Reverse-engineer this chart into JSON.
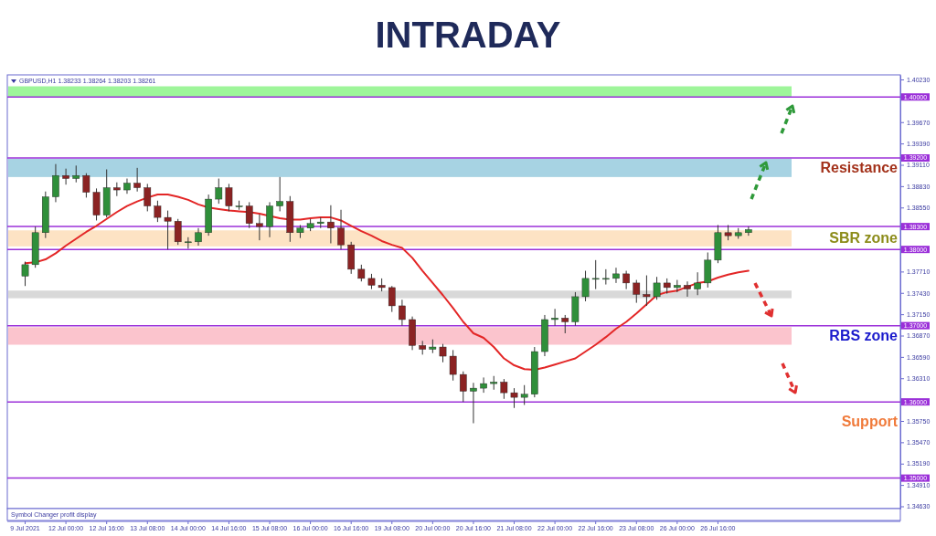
{
  "chart_data": {
    "type": "candlestick",
    "title": "INTRADAY",
    "subtitle": "GBPUSD,H1  1.38233 1.38264 1.38203 1.38261",
    "categories": [
      "9 Jul 2021",
      null,
      null,
      null,
      "12 Jul 00:00",
      null,
      null,
      null,
      "12 Jul 16:00",
      null,
      null,
      null,
      "13 Jul 08:00",
      null,
      null,
      null,
      "14 Jul 00:00",
      null,
      null,
      null,
      "14 Jul 16:00",
      null,
      null,
      null,
      "15 Jul 08:00",
      null,
      null,
      null,
      "16 Jul 00:00",
      null,
      null,
      null,
      "16 Jul 16:00",
      null,
      null,
      null,
      "19 Jul 08:00",
      null,
      null,
      null,
      "20 Jul 00:00",
      null,
      null,
      null,
      "20 Jul 16:00",
      null,
      null,
      null,
      "21 Jul 08:00",
      null,
      null,
      null,
      "22 Jul 00:00",
      null,
      null,
      null,
      "22 Jul 16:00",
      null,
      null,
      null,
      "23 Jul 08:00",
      null,
      null,
      null,
      "26 Jul 00:00",
      null,
      null,
      null,
      "26 Jul 16:00",
      null,
      null,
      null
    ],
    "ohlc": [
      [
        1.3765,
        1.3784,
        1.3752,
        1.378
      ],
      [
        1.378,
        1.383,
        1.3776,
        1.3822
      ],
      [
        1.3822,
        1.3876,
        1.3815,
        1.3869
      ],
      [
        1.3869,
        1.3912,
        1.3862,
        1.3897
      ],
      [
        1.3897,
        1.3906,
        1.3885,
        1.3893
      ],
      [
        1.3893,
        1.391,
        1.3888,
        1.3897
      ],
      [
        1.3897,
        1.39,
        1.3868,
        1.3875
      ],
      [
        1.3875,
        1.388,
        1.3838,
        1.3845
      ],
      [
        1.3845,
        1.3905,
        1.3842,
        1.3881
      ],
      [
        1.3881,
        1.3888,
        1.387,
        1.3878
      ],
      [
        1.3878,
        1.3893,
        1.3873,
        1.3887
      ],
      [
        1.3887,
        1.3907,
        1.3876,
        1.3881
      ],
      [
        1.3881,
        1.3886,
        1.385,
        1.3857
      ],
      [
        1.3857,
        1.3864,
        1.3836,
        1.3842
      ],
      [
        1.3842,
        1.3851,
        1.38,
        1.3837
      ],
      [
        1.3837,
        1.384,
        1.3806,
        1.381
      ],
      [
        1.381,
        1.3816,
        1.3801,
        1.381
      ],
      [
        1.381,
        1.3828,
        1.3805,
        1.3822
      ],
      [
        1.3822,
        1.3872,
        1.3818,
        1.3866
      ],
      [
        1.3866,
        1.3893,
        1.386,
        1.3881
      ],
      [
        1.3881,
        1.3886,
        1.385,
        1.3857
      ],
      [
        1.3857,
        1.3864,
        1.3852,
        1.3857
      ],
      [
        1.3857,
        1.3862,
        1.3828,
        1.3834
      ],
      [
        1.3834,
        1.3846,
        1.3812,
        1.383
      ],
      [
        1.383,
        1.3862,
        1.3816,
        1.3857
      ],
      [
        1.3857,
        1.3895,
        1.385,
        1.3863
      ],
      [
        1.3863,
        1.387,
        1.381,
        1.3822
      ],
      [
        1.3822,
        1.3832,
        1.3815,
        1.3828
      ],
      [
        1.3828,
        1.384,
        1.3824,
        1.3834
      ],
      [
        1.3834,
        1.3842,
        1.3828,
        1.3836
      ],
      [
        1.3836,
        1.3858,
        1.3808,
        1.3828
      ],
      [
        1.3828,
        1.3852,
        1.38,
        1.3806
      ],
      [
        1.3806,
        1.381,
        1.3768,
        1.3774
      ],
      [
        1.3774,
        1.378,
        1.3758,
        1.3762
      ],
      [
        1.3762,
        1.3768,
        1.3748,
        1.3753
      ],
      [
        1.3753,
        1.3762,
        1.3745,
        1.375
      ],
      [
        1.375,
        1.3752,
        1.3718,
        1.3726
      ],
      [
        1.3726,
        1.3734,
        1.37,
        1.3708
      ],
      [
        1.3708,
        1.3712,
        1.3668,
        1.3674
      ],
      [
        1.3674,
        1.368,
        1.3662,
        1.3669
      ],
      [
        1.3669,
        1.3682,
        1.3664,
        1.3672
      ],
      [
        1.3672,
        1.3676,
        1.3652,
        1.366
      ],
      [
        1.366,
        1.3668,
        1.3628,
        1.3636
      ],
      [
        1.3636,
        1.364,
        1.36,
        1.3614
      ],
      [
        1.3614,
        1.3625,
        1.3572,
        1.3618
      ],
      [
        1.3618,
        1.3632,
        1.3612,
        1.3624
      ],
      [
        1.3624,
        1.3634,
        1.3616,
        1.3626
      ],
      [
        1.3626,
        1.363,
        1.3604,
        1.3612
      ],
      [
        1.3612,
        1.3618,
        1.3592,
        1.3606
      ],
      [
        1.3606,
        1.3622,
        1.3596,
        1.361
      ],
      [
        1.361,
        1.3672,
        1.3606,
        1.3666
      ],
      [
        1.3666,
        1.3714,
        1.366,
        1.3708
      ],
      [
        1.3708,
        1.3722,
        1.37,
        1.371
      ],
      [
        1.371,
        1.3714,
        1.369,
        1.3705
      ],
      [
        1.3705,
        1.3744,
        1.37,
        1.3738
      ],
      [
        1.3738,
        1.3772,
        1.3732,
        1.3762
      ],
      [
        1.3762,
        1.3786,
        1.3748,
        1.3762
      ],
      [
        1.3762,
        1.3774,
        1.3754,
        1.3762
      ],
      [
        1.3762,
        1.3776,
        1.3756,
        1.3768
      ],
      [
        1.3768,
        1.3772,
        1.3748,
        1.3756
      ],
      [
        1.3756,
        1.376,
        1.373,
        1.3741
      ],
      [
        1.3741,
        1.3766,
        1.3726,
        1.3738
      ],
      [
        1.3738,
        1.3764,
        1.3734,
        1.3756
      ],
      [
        1.3756,
        1.3762,
        1.3742,
        1.375
      ],
      [
        1.375,
        1.376,
        1.3744,
        1.3753
      ],
      [
        1.3753,
        1.3758,
        1.3738,
        1.3748
      ],
      [
        1.3748,
        1.377,
        1.374,
        1.3756
      ],
      [
        1.3756,
        1.3796,
        1.375,
        1.3786
      ],
      [
        1.3786,
        1.3832,
        1.3782,
        1.3822
      ],
      [
        1.3822,
        1.3832,
        1.3812,
        1.3818
      ],
      [
        1.3818,
        1.3828,
        1.3814,
        1.3822
      ],
      [
        1.3822,
        1.383,
        1.3818,
        1.3826
      ]
    ],
    "series": [
      {
        "type": "line",
        "color": "#e32626",
        "values": [
          1.3782,
          1.3783,
          1.3787,
          1.3795,
          1.3805,
          1.3814,
          1.3823,
          1.3831,
          1.384,
          1.3849,
          1.3857,
          1.3863,
          1.3868,
          1.3872,
          1.3872,
          1.3869,
          1.3865,
          1.3859,
          1.3855,
          1.3853,
          1.3851,
          1.385,
          1.3849,
          1.3847,
          1.3844,
          1.3841,
          1.3839,
          1.3839,
          1.3841,
          1.3842,
          1.3842,
          1.3838,
          1.3831,
          1.3824,
          1.3818,
          1.3811,
          1.3806,
          1.3802,
          1.3789,
          1.3772,
          1.3756,
          1.374,
          1.3723,
          1.3705,
          1.369,
          1.3684,
          1.3672,
          1.3657,
          1.3648,
          1.3643,
          1.3642,
          1.3645,
          1.3649,
          1.3653,
          1.3657,
          1.3666,
          1.3675,
          1.3685,
          1.3696,
          1.3705,
          1.3716,
          1.3728,
          1.374,
          1.3744,
          1.3746,
          1.3751,
          1.3756,
          1.3758,
          1.3763,
          1.3767,
          1.377,
          1.3772
        ]
      }
    ],
    "ylim": [
      1.346,
      1.4029
    ],
    "yticks": [
      {
        "value": 1.4023,
        "label": "1.40230"
      },
      {
        "value": 1.3967,
        "label": "1.39670"
      },
      {
        "value": 1.3939,
        "label": "1.39390"
      },
      {
        "value": 1.3911,
        "label": "1.39110"
      },
      {
        "value": 1.3883,
        "label": "1.38830"
      },
      {
        "value": 1.3855,
        "label": "1.38550"
      },
      {
        "value": 1.3771,
        "label": "1.37710"
      },
      {
        "value": 1.3743,
        "label": "1.37430"
      },
      {
        "value": 1.3715,
        "label": "1.37150"
      },
      {
        "value": 1.3687,
        "label": "1.36870"
      },
      {
        "value": 1.3659,
        "label": "1.36590"
      },
      {
        "value": 1.3631,
        "label": "1.36310"
      },
      {
        "value": 1.3575,
        "label": "1.35750"
      },
      {
        "value": 1.3547,
        "label": "1.35470"
      },
      {
        "value": 1.3519,
        "label": "1.35190"
      },
      {
        "value": 1.3491,
        "label": "1.34910"
      },
      {
        "value": 1.3463,
        "label": "1.34630"
      }
    ],
    "ref_lines": [
      {
        "axis": "y",
        "value": 1.4,
        "label": "1.40000",
        "color": "#9b30d9"
      },
      {
        "axis": "y",
        "value": 1.392,
        "label": "1.39200",
        "color": "#9b30d9"
      },
      {
        "axis": "y",
        "value": 1.383,
        "label": "1.38300",
        "color": "#9b30d9"
      },
      {
        "axis": "y",
        "value": 1.38,
        "label": "1.38000",
        "color": "#9b30d9"
      },
      {
        "axis": "y",
        "value": 1.37,
        "label": "1.37000",
        "color": "#9b30d9"
      },
      {
        "axis": "y",
        "value": 1.36,
        "label": "1.36000",
        "color": "#9b30d9"
      },
      {
        "axis": "y",
        "value": 1.35,
        "label": "1.35000",
        "color": "#9b30d9"
      }
    ],
    "bands": [
      {
        "axis": "y",
        "from": 1.4,
        "to": 1.4014,
        "color": "#9ef59a"
      },
      {
        "axis": "y",
        "from": 1.3895,
        "to": 1.3919,
        "color": "#a7d3e3",
        "label": "Resistance"
      },
      {
        "axis": "y",
        "from": 1.3804,
        "to": 1.3825,
        "color": "#fde3c4",
        "label": "SBR zone"
      },
      {
        "axis": "y",
        "from": 1.3736,
        "to": 1.3746,
        "color": "#d9d9d9"
      },
      {
        "axis": "y",
        "from": 1.3675,
        "to": 1.3698,
        "color": "#fbc4cd",
        "label": "RBS zone"
      }
    ],
    "annotations": [
      "Support",
      "Symbol Changer profit display"
    ]
  }
}
